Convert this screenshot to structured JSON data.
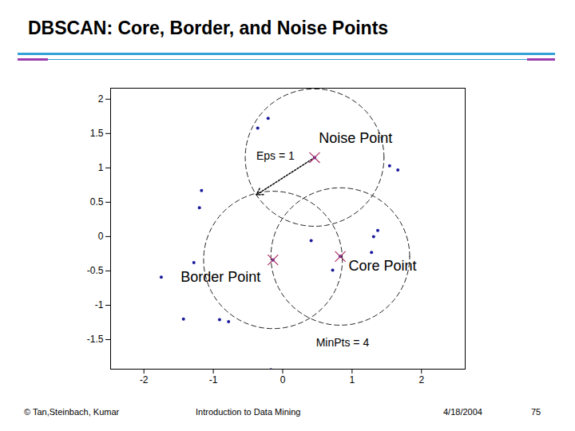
{
  "title": "DBSCAN: Core, Border, and Noise Points",
  "footer": {
    "copyright": "© Tan,Steinbach, Kumar",
    "book": "Introduction to Data Mining",
    "date": "4/18/2004",
    "page": 75
  },
  "chart_data": {
    "type": "scatter",
    "x": [
      -0.36,
      -0.21,
      1.54,
      1.66,
      -1.17,
      -1.2,
      0.41,
      1.37,
      1.31,
      1.28,
      0.72,
      -1.28,
      -1.75,
      -1.43,
      -0.91,
      -0.78,
      -0.17
    ],
    "y": [
      1.58,
      1.72,
      1.03,
      0.97,
      0.67,
      0.42,
      -0.06,
      0.09,
      0.0,
      -0.23,
      -0.49,
      -0.38,
      -0.59,
      -1.2,
      -1.21,
      -1.24,
      -1.94
    ],
    "color": "#1c1c9c",
    "marker": "dot",
    "xlim": [
      -2.48,
      2.63
    ],
    "ylim": [
      -1.93,
      2.16
    ],
    "xticks": [
      -2,
      -1,
      0,
      1,
      2
    ],
    "yticks": [
      -1.5,
      -1,
      -0.5,
      0,
      0.5,
      1,
      1.5,
      2
    ],
    "eps": 1,
    "highlighted": [
      {
        "label": "Noise Point",
        "x": 0.46,
        "y": 1.15,
        "label_x": 0.52,
        "label_y": 1.43
      },
      {
        "label": "Border Point",
        "x": -0.14,
        "y": -0.34,
        "label_x": -1.47,
        "label_y": -0.59
      },
      {
        "label": "Core Point",
        "x": 0.83,
        "y": -0.29,
        "label_x": 0.95,
        "label_y": -0.43
      }
    ],
    "annotations": [
      {
        "text": "Eps = 1",
        "x": -0.38,
        "y": 1.17
      },
      {
        "text": "MinPts = 4",
        "x": 0.48,
        "y": -1.55
      }
    ]
  }
}
